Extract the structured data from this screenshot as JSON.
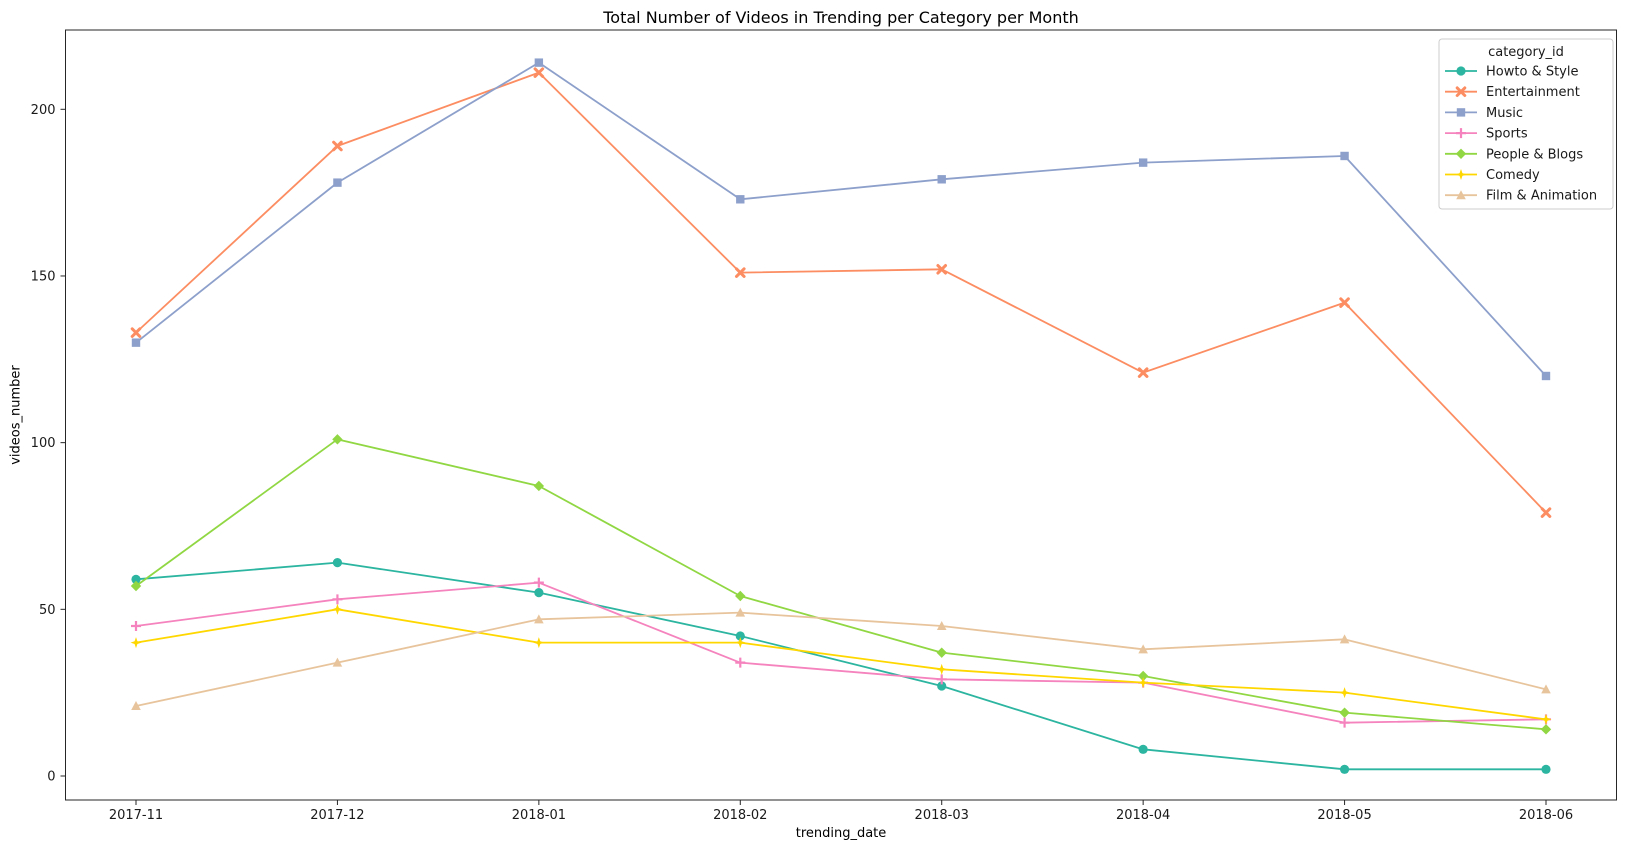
{
  "title": "Total Number of Videos in Trending per Category per Month",
  "chart_data": {
    "type": "line",
    "title": "Total Number of Videos in Trending per Category per Month",
    "xlabel": "trending_date",
    "ylabel": "videos_number",
    "categories": [
      "2017-11",
      "2017-12",
      "2018-01",
      "2018-02",
      "2018-03",
      "2018-04",
      "2018-05",
      "2018-06"
    ],
    "yticks": [
      0,
      50,
      100,
      150,
      200
    ],
    "ylim": [
      -7,
      224
    ],
    "grid": false,
    "legend_title": "category_id",
    "legend_position": "upper right",
    "series": [
      {
        "name": "Howto & Style",
        "color": "#2cb5a0",
        "marker": "circle",
        "values": [
          59,
          64,
          55,
          42,
          27,
          8,
          2,
          2
        ]
      },
      {
        "name": "Entertainment",
        "color": "#fc8d62",
        "marker": "x",
        "values": [
          133,
          189,
          211,
          151,
          152,
          121,
          142,
          79
        ]
      },
      {
        "name": "Music",
        "color": "#8da0cb",
        "marker": "square",
        "values": [
          130,
          178,
          214,
          173,
          179,
          184,
          186,
          120
        ]
      },
      {
        "name": "Sports",
        "color": "#f583bd",
        "marker": "plus",
        "values": [
          45,
          53,
          58,
          34,
          29,
          28,
          16,
          17
        ]
      },
      {
        "name": "People & Blogs",
        "color": "#90d743",
        "marker": "diamond",
        "values": [
          57,
          101,
          87,
          54,
          37,
          30,
          19,
          14
        ]
      },
      {
        "name": "Comedy",
        "color": "#ffd700",
        "marker": "star",
        "values": [
          40,
          50,
          40,
          40,
          32,
          28,
          25,
          17
        ]
      },
      {
        "name": "Film & Animation",
        "color": "#e8c49c",
        "marker": "triangle",
        "values": [
          21,
          34,
          47,
          49,
          45,
          38,
          41,
          26
        ]
      }
    ]
  }
}
